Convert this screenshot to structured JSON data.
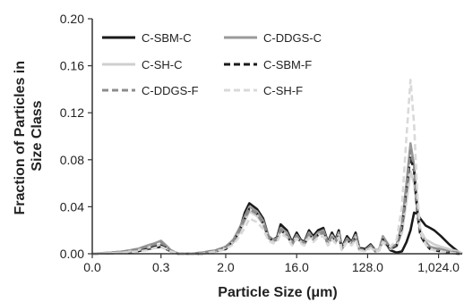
{
  "chart_data": {
    "type": "line",
    "title": "",
    "xlabel": "Particle Size (μm)",
    "ylabel": "Fraction of Particles in Size Class",
    "ylabel_lines": [
      "Fraction of Particles in",
      "Size Class"
    ],
    "x_scale": "log2",
    "xlim": [
      0.04,
      2048
    ],
    "ylim": [
      0,
      0.2
    ],
    "x_ticks": [
      {
        "value": 0.04,
        "label": "0.0"
      },
      {
        "value": 0.3,
        "label": "0.3"
      },
      {
        "value": 2.0,
        "label": "2.0"
      },
      {
        "value": 16.0,
        "label": "16.0"
      },
      {
        "value": 128.0,
        "label": "128.0"
      },
      {
        "value": 1024.0,
        "label": "1,024.0"
      }
    ],
    "y_ticks": [
      {
        "value": 0.0,
        "label": "0.00"
      },
      {
        "value": 0.04,
        "label": "0.04"
      },
      {
        "value": 0.08,
        "label": "0.08"
      },
      {
        "value": 0.12,
        "label": "0.12"
      },
      {
        "value": 0.16,
        "label": "0.16"
      },
      {
        "value": 0.2,
        "label": "0.20"
      }
    ],
    "grid": false,
    "legend_position": "top-left",
    "series": [
      {
        "name": "C-SBM-C",
        "color": "#1a1a1a",
        "dash": "solid",
        "x": [
          0.04,
          0.07,
          0.1,
          0.15,
          0.2,
          0.25,
          0.3,
          0.35,
          0.4,
          0.5,
          0.7,
          1.0,
          1.5,
          2.0,
          2.5,
          3.0,
          3.5,
          4.0,
          5.0,
          6.0,
          7.0,
          8.0,
          9.0,
          10.0,
          12.0,
          14.0,
          16.0,
          18.0,
          20.0,
          23.0,
          26.0,
          30.0,
          35.0,
          40.0,
          45.0,
          50.0,
          55.0,
          60.0,
          70.0,
          80.0,
          90.0,
          100.0,
          120.0,
          140.0,
          160.0,
          180.0,
          200.0,
          250.0,
          300.0,
          350.0,
          400.0,
          450.0,
          500.0,
          550.0,
          600.0,
          700.0,
          800.0,
          900.0,
          1100.0,
          1400.0,
          1800.0,
          2048.0
        ],
        "y": [
          0.0,
          0.0005,
          0.001,
          0.002,
          0.004,
          0.005,
          0.006,
          0.004,
          0.002,
          0.0,
          0.0,
          0.0,
          0.002,
          0.004,
          0.01,
          0.02,
          0.035,
          0.043,
          0.038,
          0.03,
          0.015,
          0.012,
          0.014,
          0.025,
          0.02,
          0.01,
          0.018,
          0.012,
          0.01,
          0.02,
          0.015,
          0.02,
          0.022,
          0.01,
          0.018,
          0.012,
          0.02,
          0.005,
          0.015,
          0.01,
          0.018,
          0.005,
          0.004,
          0.008,
          0.003,
          0.004,
          0.012,
          0.003,
          0.001,
          0.002,
          0.01,
          0.02,
          0.035,
          0.034,
          0.03,
          0.024,
          0.022,
          0.02,
          0.015,
          0.008,
          0.002,
          0.0
        ]
      },
      {
        "name": "C-DDGS-C",
        "color": "#9a9a9a",
        "dash": "solid",
        "x": [
          0.04,
          0.07,
          0.1,
          0.15,
          0.2,
          0.25,
          0.3,
          0.35,
          0.4,
          0.5,
          0.7,
          1.0,
          1.5,
          2.0,
          2.5,
          3.0,
          3.5,
          4.0,
          5.0,
          6.0,
          7.0,
          8.0,
          9.0,
          10.0,
          12.0,
          14.0,
          16.0,
          18.0,
          20.0,
          23.0,
          26.0,
          30.0,
          35.0,
          40.0,
          45.0,
          50.0,
          55.0,
          60.0,
          70.0,
          80.0,
          90.0,
          100.0,
          120.0,
          140.0,
          160.0,
          180.0,
          200.0,
          250.0,
          300.0,
          350.0,
          400.0,
          450.0,
          500.0,
          550.0,
          600.0,
          700.0,
          800.0,
          900.0,
          1100.0,
          1400.0,
          1800.0,
          2048.0
        ],
        "y": [
          0.0,
          0.001,
          0.002,
          0.004,
          0.007,
          0.009,
          0.011,
          0.007,
          0.003,
          0.0,
          0.0,
          0.001,
          0.003,
          0.006,
          0.012,
          0.022,
          0.032,
          0.04,
          0.036,
          0.028,
          0.015,
          0.012,
          0.013,
          0.022,
          0.018,
          0.009,
          0.016,
          0.011,
          0.009,
          0.018,
          0.013,
          0.018,
          0.02,
          0.009,
          0.016,
          0.011,
          0.018,
          0.004,
          0.013,
          0.009,
          0.016,
          0.004,
          0.003,
          0.007,
          0.002,
          0.004,
          0.015,
          0.005,
          0.008,
          0.025,
          0.06,
          0.094,
          0.075,
          0.04,
          0.02,
          0.01,
          0.006,
          0.005,
          0.004,
          0.003,
          0.001,
          0.0
        ]
      },
      {
        "name": "C-SH-C",
        "color": "#cfcfcf",
        "dash": "solid",
        "x": [
          0.04,
          0.07,
          0.1,
          0.15,
          0.2,
          0.25,
          0.3,
          0.35,
          0.4,
          0.5,
          0.7,
          1.0,
          1.5,
          2.0,
          2.5,
          3.0,
          3.5,
          4.0,
          5.0,
          6.0,
          7.0,
          8.0,
          9.0,
          10.0,
          12.0,
          14.0,
          16.0,
          18.0,
          20.0,
          23.0,
          26.0,
          30.0,
          35.0,
          40.0,
          45.0,
          50.0,
          55.0,
          60.0,
          70.0,
          80.0,
          90.0,
          100.0,
          120.0,
          140.0,
          160.0,
          180.0,
          200.0,
          250.0,
          300.0,
          350.0,
          400.0,
          450.0,
          500.0,
          550.0,
          600.0,
          700.0,
          800.0,
          900.0,
          1100.0,
          1400.0,
          1800.0,
          2048.0
        ],
        "y": [
          0.0,
          0.0005,
          0.001,
          0.003,
          0.005,
          0.006,
          0.008,
          0.005,
          0.002,
          0.0,
          0.0,
          0.0,
          0.002,
          0.005,
          0.01,
          0.018,
          0.028,
          0.036,
          0.032,
          0.025,
          0.013,
          0.01,
          0.012,
          0.02,
          0.016,
          0.008,
          0.015,
          0.01,
          0.008,
          0.016,
          0.012,
          0.016,
          0.018,
          0.008,
          0.015,
          0.01,
          0.016,
          0.004,
          0.012,
          0.008,
          0.014,
          0.004,
          0.003,
          0.006,
          0.003,
          0.004,
          0.01,
          0.004,
          0.006,
          0.018,
          0.045,
          0.07,
          0.06,
          0.035,
          0.02,
          0.012,
          0.01,
          0.008,
          0.006,
          0.004,
          0.002,
          0.0
        ]
      },
      {
        "name": "C-SBM-F",
        "color": "#1a1a1a",
        "dash": "dashed",
        "x": [
          0.04,
          0.07,
          0.1,
          0.15,
          0.2,
          0.25,
          0.3,
          0.35,
          0.4,
          0.5,
          0.7,
          1.0,
          1.5,
          2.0,
          2.5,
          3.0,
          3.5,
          4.0,
          5.0,
          6.0,
          7.0,
          8.0,
          9.0,
          10.0,
          12.0,
          14.0,
          16.0,
          18.0,
          20.0,
          23.0,
          26.0,
          30.0,
          35.0,
          40.0,
          45.0,
          50.0,
          55.0,
          60.0,
          70.0,
          80.0,
          90.0,
          100.0,
          120.0,
          140.0,
          160.0,
          180.0,
          200.0,
          250.0,
          300.0,
          350.0,
          400.0,
          450.0,
          500.0,
          550.0,
          600.0,
          700.0,
          800.0,
          900.0,
          1100.0,
          1400.0,
          1800.0,
          2048.0
        ],
        "y": [
          0.0,
          0.0005,
          0.001,
          0.002,
          0.004,
          0.006,
          0.007,
          0.005,
          0.002,
          0.0,
          0.0,
          0.0,
          0.002,
          0.005,
          0.01,
          0.02,
          0.03,
          0.038,
          0.034,
          0.026,
          0.014,
          0.011,
          0.012,
          0.02,
          0.016,
          0.008,
          0.015,
          0.01,
          0.008,
          0.016,
          0.012,
          0.016,
          0.018,
          0.008,
          0.014,
          0.01,
          0.016,
          0.004,
          0.012,
          0.008,
          0.014,
          0.004,
          0.003,
          0.006,
          0.002,
          0.003,
          0.012,
          0.004,
          0.007,
          0.022,
          0.055,
          0.083,
          0.07,
          0.035,
          0.016,
          0.008,
          0.004,
          0.003,
          0.002,
          0.001,
          0.0,
          0.0
        ]
      },
      {
        "name": "C-DDGS-F",
        "color": "#8c8c8c",
        "dash": "dashed",
        "x": [
          0.04,
          0.07,
          0.1,
          0.15,
          0.2,
          0.25,
          0.3,
          0.35,
          0.4,
          0.5,
          0.7,
          1.0,
          1.5,
          2.0,
          2.5,
          3.0,
          3.5,
          4.0,
          5.0,
          6.0,
          7.0,
          8.0,
          9.0,
          10.0,
          12.0,
          14.0,
          16.0,
          18.0,
          20.0,
          23.0,
          26.0,
          30.0,
          35.0,
          40.0,
          45.0,
          50.0,
          55.0,
          60.0,
          70.0,
          80.0,
          90.0,
          100.0,
          120.0,
          140.0,
          160.0,
          180.0,
          200.0,
          250.0,
          300.0,
          350.0,
          400.0,
          450.0,
          500.0,
          550.0,
          600.0,
          700.0,
          800.0,
          900.0,
          1100.0,
          1400.0,
          1800.0,
          2048.0
        ],
        "y": [
          0.0,
          0.001,
          0.002,
          0.004,
          0.006,
          0.008,
          0.01,
          0.006,
          0.003,
          0.0,
          0.0,
          0.001,
          0.003,
          0.006,
          0.011,
          0.02,
          0.03,
          0.038,
          0.034,
          0.026,
          0.014,
          0.011,
          0.012,
          0.02,
          0.016,
          0.008,
          0.015,
          0.01,
          0.008,
          0.016,
          0.012,
          0.016,
          0.018,
          0.008,
          0.014,
          0.01,
          0.016,
          0.004,
          0.012,
          0.008,
          0.014,
          0.004,
          0.003,
          0.006,
          0.002,
          0.003,
          0.013,
          0.005,
          0.008,
          0.024,
          0.058,
          0.088,
          0.074,
          0.038,
          0.018,
          0.009,
          0.005,
          0.004,
          0.003,
          0.002,
          0.001,
          0.0
        ]
      },
      {
        "name": "C-SH-F",
        "color": "#d9d9d9",
        "dash": "dashed",
        "x": [
          0.04,
          0.07,
          0.1,
          0.15,
          0.2,
          0.25,
          0.3,
          0.35,
          0.4,
          0.5,
          0.7,
          1.0,
          1.5,
          2.0,
          2.5,
          3.0,
          3.5,
          4.0,
          5.0,
          6.0,
          7.0,
          8.0,
          9.0,
          10.0,
          12.0,
          14.0,
          16.0,
          18.0,
          20.0,
          23.0,
          26.0,
          30.0,
          35.0,
          40.0,
          45.0,
          50.0,
          55.0,
          60.0,
          70.0,
          80.0,
          90.0,
          100.0,
          120.0,
          140.0,
          160.0,
          180.0,
          200.0,
          250.0,
          300.0,
          350.0,
          400.0,
          450.0,
          500.0,
          550.0,
          600.0,
          700.0,
          800.0,
          900.0,
          1100.0,
          1400.0,
          1800.0,
          2048.0
        ],
        "y": [
          0.0,
          0.0005,
          0.001,
          0.002,
          0.003,
          0.005,
          0.006,
          0.004,
          0.002,
          0.0,
          0.0,
          0.0,
          0.002,
          0.004,
          0.008,
          0.015,
          0.022,
          0.03,
          0.027,
          0.021,
          0.011,
          0.009,
          0.01,
          0.017,
          0.014,
          0.007,
          0.013,
          0.009,
          0.007,
          0.014,
          0.01,
          0.014,
          0.015,
          0.007,
          0.012,
          0.009,
          0.014,
          0.003,
          0.01,
          0.007,
          0.012,
          0.003,
          0.002,
          0.005,
          0.002,
          0.003,
          0.01,
          0.006,
          0.012,
          0.04,
          0.1,
          0.148,
          0.11,
          0.05,
          0.02,
          0.008,
          0.004,
          0.003,
          0.002,
          0.001,
          0.0,
          0.0
        ]
      }
    ]
  }
}
